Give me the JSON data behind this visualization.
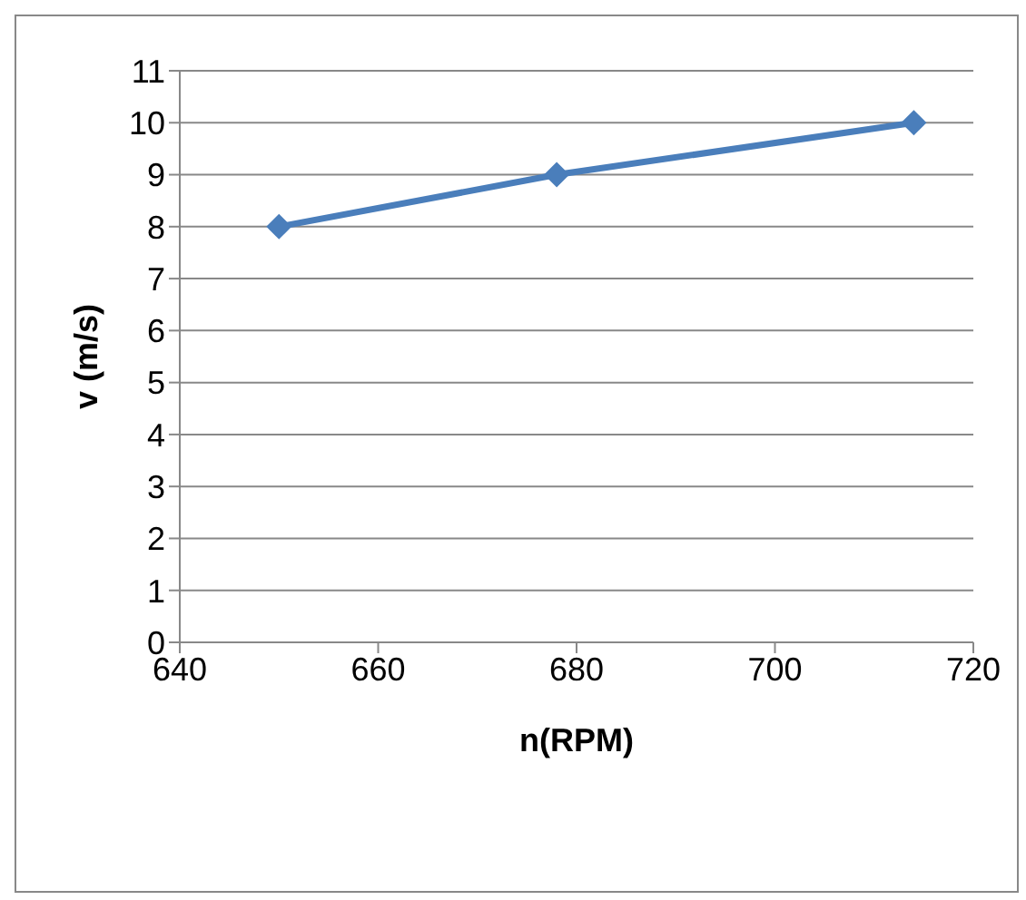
{
  "chart_data": {
    "type": "line",
    "xlabel": "n(RPM)",
    "ylabel": "v (m/s)",
    "x": [
      650,
      678,
      714
    ],
    "series": [
      {
        "color": "#4a7ebb",
        "values": [
          8,
          9,
          10
        ]
      }
    ],
    "xlim": [
      640,
      720
    ],
    "xticks": [
      640,
      660,
      680,
      700,
      720
    ],
    "ylim": [
      0,
      11
    ],
    "yticks": [
      0,
      1,
      2,
      3,
      4,
      5,
      6,
      7,
      8,
      9,
      10,
      11
    ],
    "grid": "y",
    "legend": false,
    "marker": "diamond",
    "line_style": "solid"
  }
}
